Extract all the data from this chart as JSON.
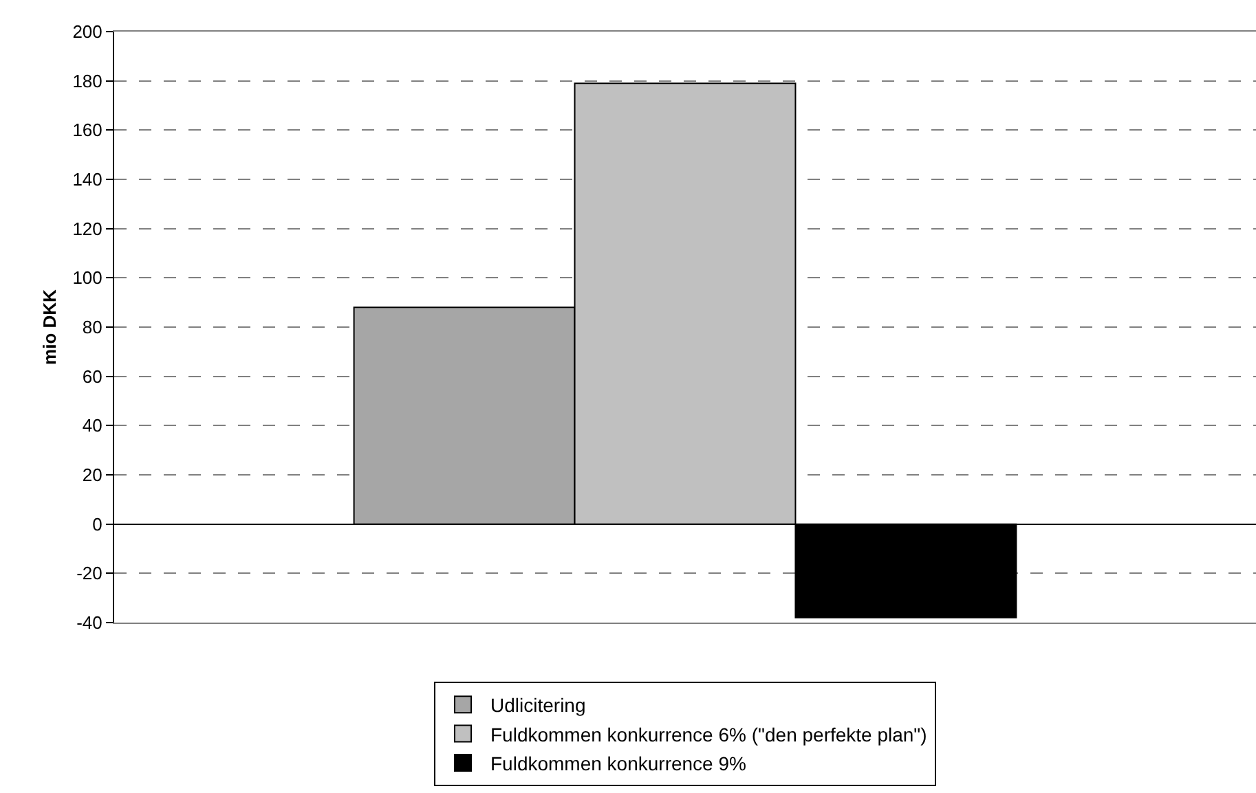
{
  "chart_data": {
    "type": "bar",
    "ylabel": "mio DKK",
    "categories": [
      null
    ],
    "series": [
      {
        "name": "Udlicitering",
        "color": "#a6a6a6",
        "values": [
          88
        ]
      },
      {
        "name": "Fuldkommen konkurrence 6% (\"den perfekte plan\")",
        "color": "#c0c0c0",
        "values": [
          179
        ]
      },
      {
        "name": "Fuldkommen konkurrence 9%",
        "color": "#000000",
        "values": [
          -38
        ]
      }
    ],
    "ylim": [
      -40,
      200
    ],
    "yticks": [
      -40,
      -20,
      0,
      20,
      40,
      60,
      80,
      100,
      120,
      140,
      160,
      180,
      200
    ],
    "grid": "y",
    "legend": "bottom"
  }
}
